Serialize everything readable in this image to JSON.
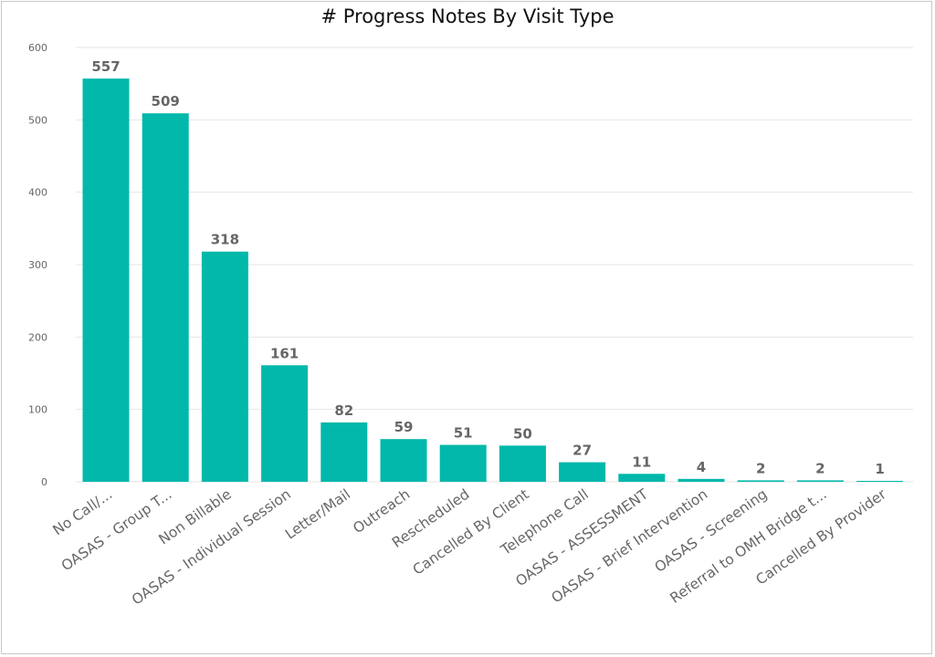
{
  "chart_data": {
    "type": "bar",
    "title": "# Progress Notes By Visit Type",
    "xlabel": "",
    "ylabel": "",
    "ylim": [
      0,
      600
    ],
    "yticks": [
      "0",
      "100",
      "200",
      "300",
      "400",
      "500",
      "600"
    ],
    "grid": true,
    "bar_color": "#01B8AA",
    "categories": [
      "No Call/...",
      "OASAS - Group T...",
      "Non Billable",
      "OASAS - Individual Session",
      "Letter/Mail",
      "Outreach",
      "Rescheduled",
      "Cancelled By Client",
      "Telephone Call",
      "OASAS - ASSESSMENT",
      "OASAS - Brief Intervention",
      "OASAS - Screening",
      "Referral to OMH Bridge t...",
      "Cancelled By Provider"
    ],
    "values": [
      557,
      509,
      318,
      161,
      82,
      59,
      51,
      50,
      27,
      11,
      4,
      2,
      2,
      1
    ]
  }
}
